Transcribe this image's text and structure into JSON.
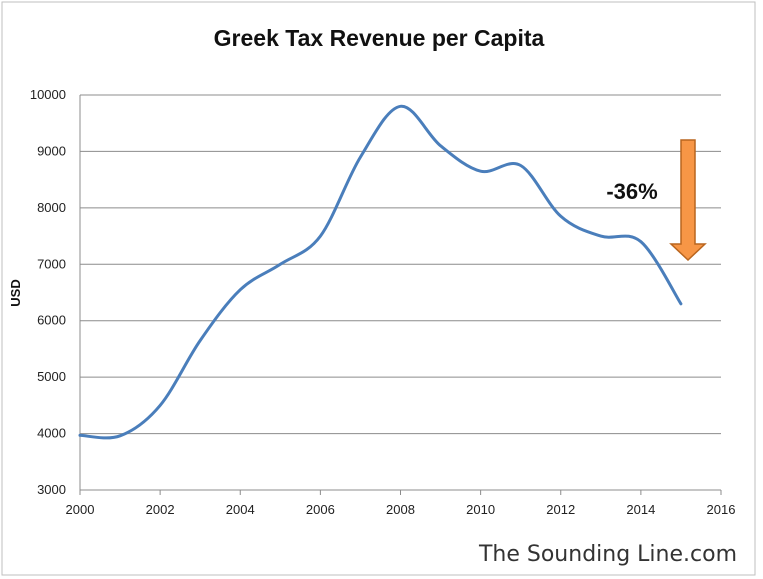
{
  "chart_data": {
    "type": "line",
    "title": "Greek Tax Revenue per Capita",
    "xlabel": "",
    "ylabel": "USD",
    "xlim": [
      2000,
      2016
    ],
    "ylim": [
      3000,
      10000
    ],
    "x_ticks": [
      2000,
      2002,
      2004,
      2006,
      2008,
      2010,
      2012,
      2014,
      2016
    ],
    "y_ticks": [
      3000,
      4000,
      5000,
      6000,
      7000,
      8000,
      9000,
      10000
    ],
    "grid": "horizontal",
    "series": [
      {
        "color": "#4a7ebb",
        "x": [
          2000,
          2001,
          2002,
          2003,
          2004,
          2005,
          2006,
          2007,
          2008,
          2009,
          2010,
          2011,
          2012,
          2013,
          2014,
          2015
        ],
        "values": [
          3970,
          3960,
          4500,
          5650,
          6550,
          7000,
          7500,
          8900,
          9800,
          9100,
          8650,
          8750,
          7850,
          7500,
          7400,
          6300
        ]
      }
    ],
    "annotations": [
      {
        "text": "-36%",
        "arrow": "down",
        "arrow_color": "#f79646"
      }
    ]
  },
  "watermark": "The Sounding Line.com"
}
